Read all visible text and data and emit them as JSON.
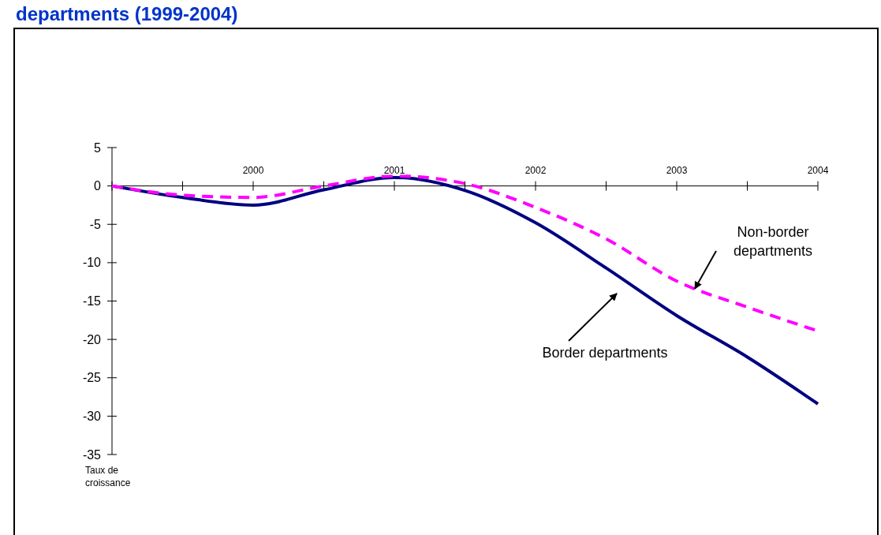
{
  "chart_data": {
    "type": "line",
    "title": "departments (1999-2004)",
    "ylabel": "Taux de croissance",
    "x": [
      1999,
      1999.5,
      2000,
      2000.5,
      2001,
      2001.5,
      2002,
      2002.5,
      2003,
      2003.5,
      2004
    ],
    "series": [
      {
        "name": "Border departments",
        "color": "#000080",
        "line_style": "solid",
        "values": [
          0,
          -1.5,
          -2.5,
          -0.5,
          1.1,
          -0.6,
          -4.8,
          -10.7,
          -16.9,
          -22.3,
          -28.4
        ]
      },
      {
        "name": "Non-border departments",
        "color": "#ff00ff",
        "line_style": "dashed",
        "values": [
          0,
          -1.2,
          -1.5,
          0,
          1.3,
          0.3,
          -2.8,
          -6.9,
          -12.4,
          -15.8,
          -18.9
        ]
      }
    ],
    "xlim": [
      1999,
      2004
    ],
    "xticks": [
      {
        "value": 1999,
        "label": null
      },
      {
        "value": 1999.5,
        "label": null
      },
      2000,
      {
        "value": 2000.5,
        "label": null
      },
      2001,
      {
        "value": 2001.5,
        "label": null
      },
      2002,
      {
        "value": 2002.5,
        "label": null
      },
      2003,
      {
        "value": 2003.5,
        "label": null
      },
      2004
    ],
    "ylim": [
      -35,
      5
    ],
    "yticks": [
      -35,
      -30,
      -25,
      -20,
      -15,
      -10,
      -5,
      0,
      5
    ],
    "marker": "none"
  }
}
